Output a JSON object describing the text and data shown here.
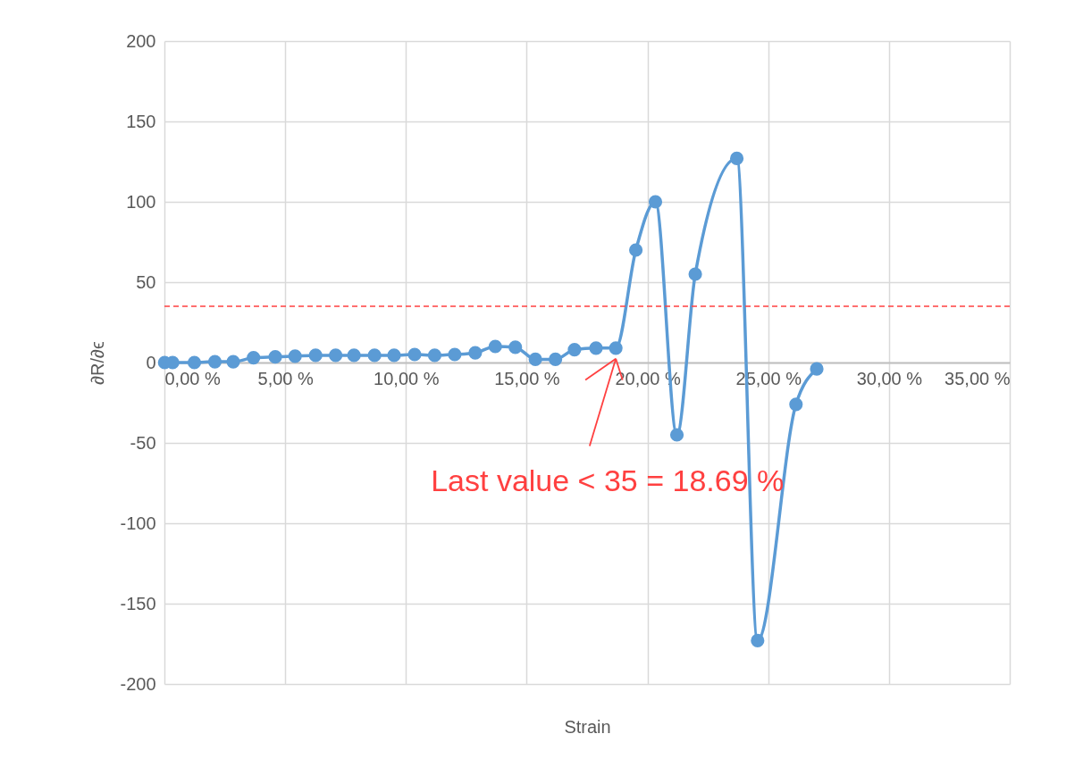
{
  "chart_data": {
    "type": "line",
    "xlabel": "Strain",
    "ylabel": "∂R/∂ϵ",
    "x": [
      0.01,
      0.34,
      1.24,
      2.09,
      2.85,
      3.69,
      4.59,
      5.41,
      6.26,
      7.09,
      7.85,
      8.7,
      9.51,
      10.36,
      11.19,
      12.02,
      12.87,
      13.7,
      14.53,
      15.36,
      16.19,
      16.98,
      17.87,
      18.69,
      19.52,
      20.33,
      21.22,
      21.98,
      23.7,
      24.56,
      26.15,
      27.01
    ],
    "series": [
      {
        "color": "#5b9bd5",
        "values": [
          0,
          0,
          0,
          0.5,
          0.5,
          3,
          3.5,
          4,
          4.5,
          4.5,
          4.5,
          4.5,
          4.5,
          5,
          4.5,
          5,
          6,
          10,
          9.5,
          2,
          2,
          8,
          9,
          9,
          70,
          100,
          -45,
          55,
          127,
          -173,
          -26,
          -4
        ]
      }
    ],
    "xlim": [
      0,
      35
    ],
    "xticks": [
      {
        "value": 0,
        "label": "0,00 %"
      },
      {
        "value": 5,
        "label": "5,00 %"
      },
      {
        "value": 10,
        "label": "10,00 %"
      },
      {
        "value": 15,
        "label": "15,00 %"
      },
      {
        "value": 20,
        "label": "20,00 %"
      },
      {
        "value": 25,
        "label": "25,00 %"
      },
      {
        "value": 30,
        "label": "30,00 %"
      },
      {
        "value": 35,
        "label": "35,00 %"
      }
    ],
    "ylim": [
      -200,
      200
    ],
    "yticks": [
      -200,
      -150,
      -100,
      -50,
      0,
      50,
      100,
      150,
      200
    ],
    "grid": true,
    "marker": "circle",
    "line_style": "solid",
    "ref_lines": [
      {
        "axis": "y",
        "value": 35,
        "color": "#ff4040",
        "line_style": "dashed"
      }
    ],
    "annotations": [
      "Last value < 35 = 18.69 %"
    ]
  }
}
